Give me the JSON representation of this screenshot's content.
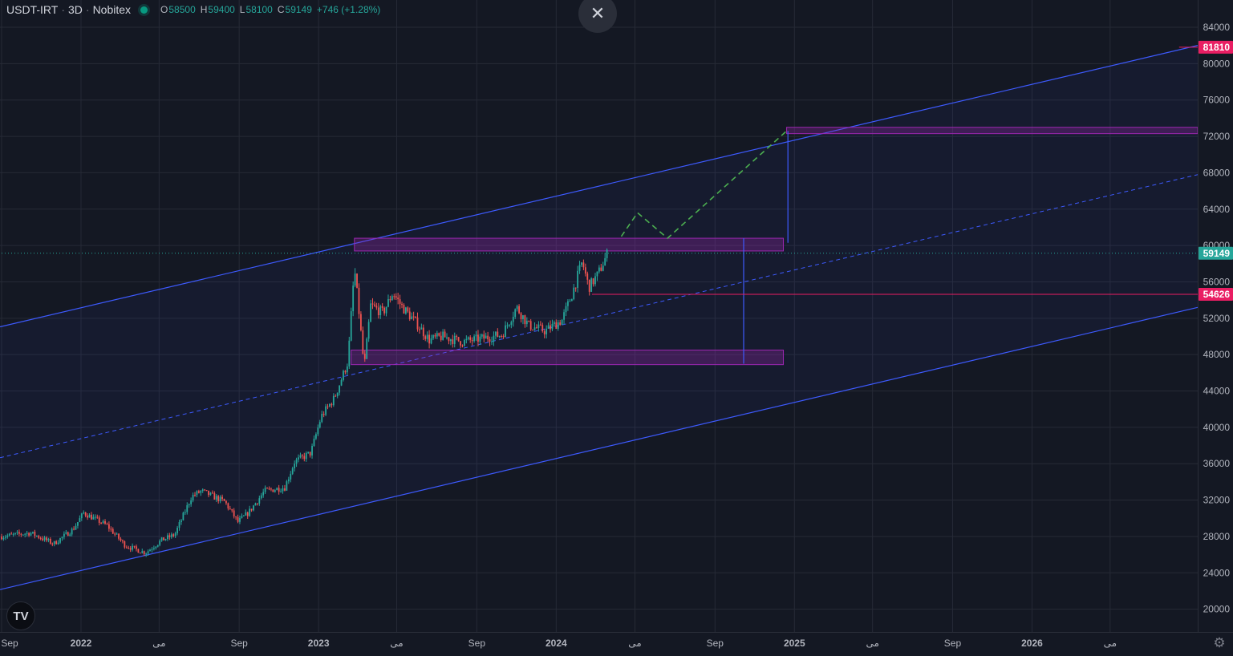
{
  "header": {
    "symbol": "USDT-IRT",
    "timeframe": "3D",
    "exchange": "Nobitex",
    "ohlc": {
      "o_label": "O",
      "o": "58500",
      "h_label": "H",
      "h": "59400",
      "l_label": "L",
      "l": "58100",
      "c_label": "C",
      "c": "59149",
      "change": "+746 (+1.28%)"
    },
    "status_color": "#089981"
  },
  "close_icon": "close-icon",
  "logo_text": "TV",
  "settings_icon": "gear-icon",
  "colors": {
    "background": "#141823",
    "grid": "#262a36",
    "up": "#26a69a",
    "down": "#ef5350",
    "channel": "#3d5afe",
    "zone": "#9c27b0",
    "level": "#e91e63",
    "projection": "#4caf50",
    "last_price": "#26a69a"
  },
  "chart_data": {
    "type": "candlestick",
    "symbol": "USDT-IRT",
    "x_range": [
      "2021-09-01",
      "2026-09-15"
    ],
    "y_range": [
      17500,
      87000
    ],
    "y_ticks": [
      20000,
      24000,
      28000,
      32000,
      36000,
      40000,
      44000,
      48000,
      52000,
      56000,
      60000,
      64000,
      68000,
      72000,
      76000,
      80000,
      84000
    ],
    "x_ticks": [
      {
        "date": "2021-09-01",
        "label": "Sep"
      },
      {
        "date": "2022-01-01",
        "label": "2022"
      },
      {
        "date": "2022-05-01",
        "label": "می"
      },
      {
        "date": "2022-09-01",
        "label": "Sep"
      },
      {
        "date": "2023-01-01",
        "label": "2023"
      },
      {
        "date": "2023-05-01",
        "label": "می"
      },
      {
        "date": "2023-09-01",
        "label": "Sep"
      },
      {
        "date": "2024-01-01",
        "label": "2024"
      },
      {
        "date": "2024-05-01",
        "label": "می"
      },
      {
        "date": "2024-09-01",
        "label": "Sep"
      },
      {
        "date": "2025-01-01",
        "label": "2025"
      },
      {
        "date": "2025-05-01",
        "label": "می"
      },
      {
        "date": "2025-09-01",
        "label": "Sep"
      },
      {
        "date": "2026-01-01",
        "label": "2026"
      },
      {
        "date": "2026-05-01",
        "label": "می"
      }
    ],
    "price_path": [
      [
        "2021-09-01",
        28000
      ],
      [
        "2021-10-15",
        28400
      ],
      [
        "2021-11-20",
        27200
      ],
      [
        "2021-12-20",
        28800
      ],
      [
        "2022-01-05",
        30600
      ],
      [
        "2022-02-10",
        29200
      ],
      [
        "2022-03-10",
        27000
      ],
      [
        "2022-04-10",
        26200
      ],
      [
        "2022-05-05",
        27600
      ],
      [
        "2022-05-25",
        28200
      ],
      [
        "2022-06-20",
        32400
      ],
      [
        "2022-07-05",
        33000
      ],
      [
        "2022-08-10",
        31800
      ],
      [
        "2022-08-30",
        29600
      ],
      [
        "2022-09-15",
        30600
      ],
      [
        "2022-10-10",
        33000
      ],
      [
        "2022-11-10",
        33400
      ],
      [
        "2022-11-25",
        36200
      ],
      [
        "2022-12-20",
        37200
      ],
      [
        "2023-01-05",
        41200
      ],
      [
        "2023-01-25",
        43200
      ],
      [
        "2023-02-15",
        47200
      ],
      [
        "2023-02-25",
        57500
      ],
      [
        "2023-03-05",
        52000
      ],
      [
        "2023-03-12",
        46500
      ],
      [
        "2023-03-22",
        53400
      ],
      [
        "2023-04-10",
        52600
      ],
      [
        "2023-04-25",
        54800
      ],
      [
        "2023-05-10",
        53200
      ],
      [
        "2023-06-01",
        51400
      ],
      [
        "2023-06-20",
        49600
      ],
      [
        "2023-07-10",
        50000
      ],
      [
        "2023-08-10",
        49400
      ],
      [
        "2023-09-10",
        49800
      ],
      [
        "2023-10-10",
        50200
      ],
      [
        "2023-11-01",
        53200
      ],
      [
        "2023-11-20",
        51200
      ],
      [
        "2023-12-15",
        50600
      ],
      [
        "2024-01-10",
        51800
      ],
      [
        "2024-01-25",
        54600
      ],
      [
        "2024-02-10",
        58200
      ],
      [
        "2024-02-20",
        55400
      ],
      [
        "2024-03-05",
        56800
      ],
      [
        "2024-03-20",
        59149
      ]
    ],
    "trend_channel": {
      "upper": [
        [
          "2021-09-01",
          51100
        ],
        [
          "2026-09-01",
          81810
        ]
      ],
      "middle": [
        [
          "2021-09-01",
          36700
        ],
        [
          "2026-09-01",
          67600
        ]
      ],
      "lower": [
        [
          "2021-09-01",
          22200
        ],
        [
          "2026-09-01",
          53000
        ]
      ]
    },
    "zones": [
      {
        "from": "2023-02-25",
        "to": "2024-12-15",
        "low": 59400,
        "high": 60800
      },
      {
        "from": "2023-02-20",
        "to": "2024-12-15",
        "low": 46900,
        "high": 48500
      },
      {
        "from": "2024-12-20",
        "to": "2026-09-15",
        "low": 72300,
        "high": 73000
      }
    ],
    "projection": [
      [
        "2024-04-10",
        61000
      ],
      [
        "2024-05-05",
        63600
      ],
      [
        "2024-06-20",
        60800
      ],
      [
        "2024-12-20",
        72600
      ]
    ],
    "levels": [
      {
        "price": 54626,
        "label": "54626",
        "from": "2024-02-25",
        "color": "#e91e63"
      },
      {
        "price": 81810,
        "label": "81810",
        "from": "2026-08-15",
        "color": "#e91e63"
      },
      {
        "price": 59149,
        "label": "59149",
        "from": "2021-09-01",
        "color": "#26a69a",
        "dotted": true
      }
    ],
    "measure_lines": [
      {
        "date": "2024-10-15",
        "from": 47000,
        "to": 60800
      },
      {
        "date": "2024-12-22",
        "from": 60300,
        "to": 72600
      }
    ]
  }
}
